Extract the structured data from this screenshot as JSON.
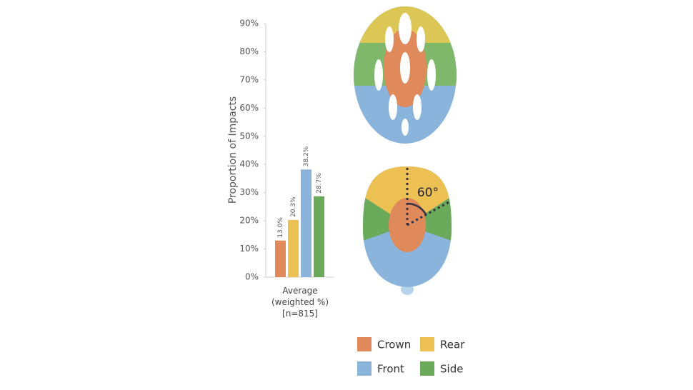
{
  "chart_data": {
    "type": "bar",
    "y_label": "Proportion of Impacts",
    "categories": [
      "Average (weighted %) [n=815]"
    ],
    "series": [
      {
        "name": "Crown",
        "color": "#e0895a",
        "values": [
          13.0
        ],
        "value_labels": [
          "13.0%"
        ]
      },
      {
        "name": "Rear",
        "color": "#ecc052",
        "values": [
          20.3
        ],
        "value_labels": [
          "20.3%"
        ]
      },
      {
        "name": "Front",
        "color": "#8ab4dc",
        "values": [
          38.2
        ],
        "value_labels": [
          "38.2%"
        ]
      },
      {
        "name": "Side",
        "color": "#6aaa5a",
        "values": [
          28.7
        ],
        "value_labels": [
          "28.7%"
        ]
      }
    ],
    "ylim": [
      0,
      90
    ],
    "yticks": [
      {
        "value": 0,
        "label": "0%"
      },
      {
        "value": 10,
        "label": "10%"
      },
      {
        "value": 20,
        "label": "20%"
      },
      {
        "value": 30,
        "label": "30%"
      },
      {
        "value": 40,
        "label": "40%"
      },
      {
        "value": 50,
        "label": "50%"
      },
      {
        "value": 60,
        "label": "60%"
      },
      {
        "value": 70,
        "label": "70%"
      },
      {
        "value": 80,
        "label": "80%"
      },
      {
        "value": 90,
        "label": "90%"
      }
    ],
    "grid": false,
    "annotation": "60°"
  }
}
